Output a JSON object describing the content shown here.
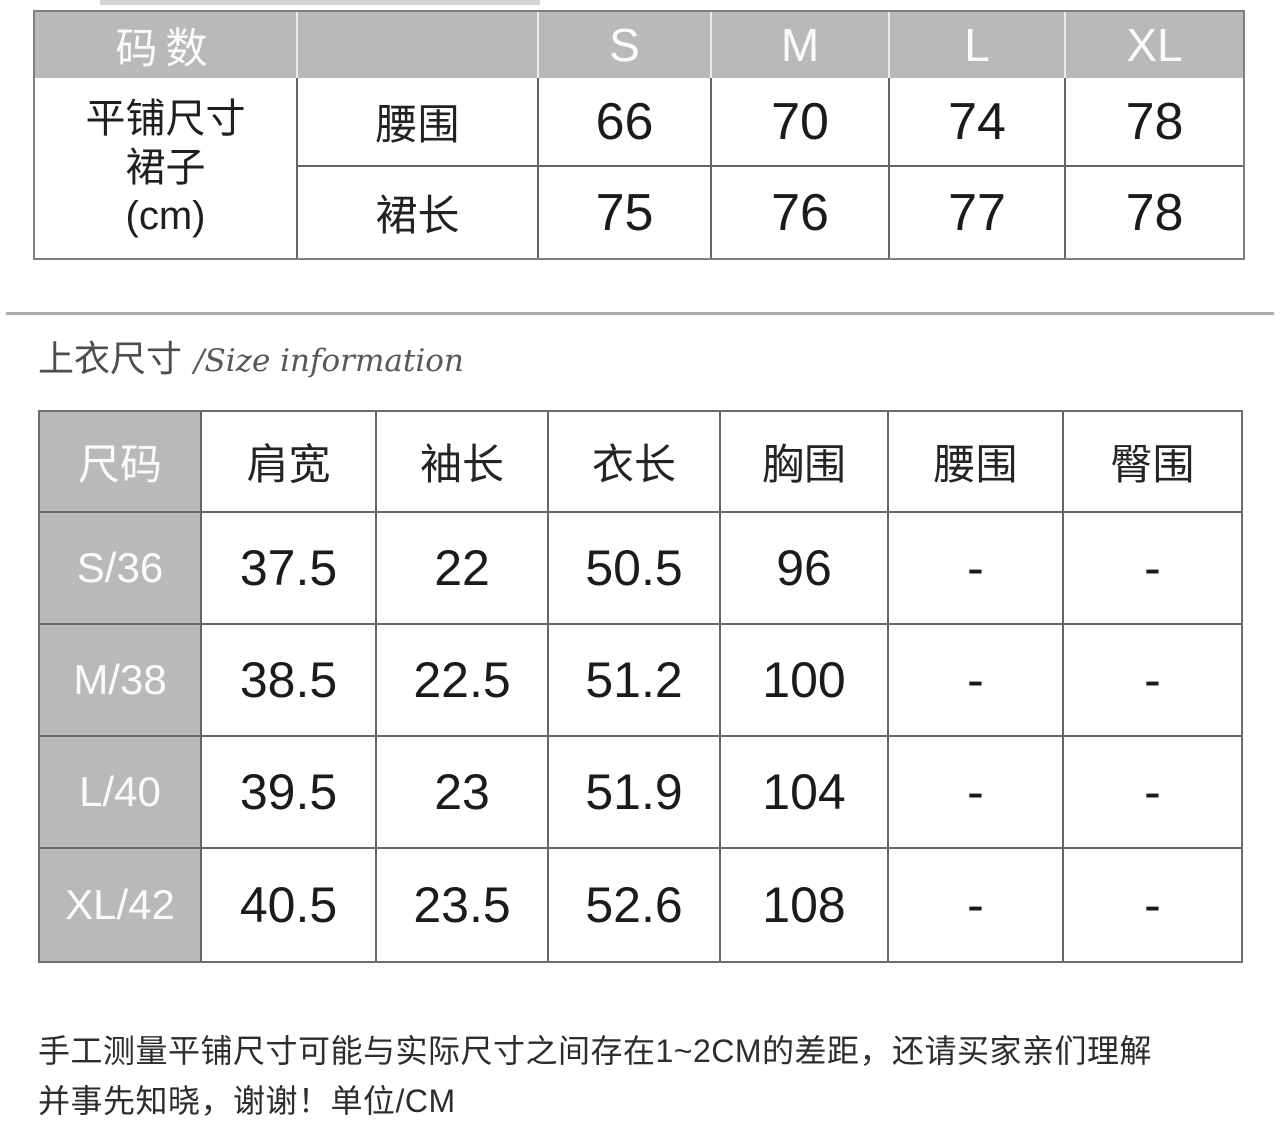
{
  "colors": {
    "header_gray": "#b9b9b9",
    "grid_border": "#666666",
    "separator_line": "#ababab",
    "heading_text": "#4d4d4d",
    "number_text": "#1b1b1b"
  },
  "skirt_table": {
    "corner_label": "码数",
    "size_headers": [
      "S",
      "M",
      "L",
      "XL"
    ],
    "group_label_lines": [
      "平铺尺寸",
      "裙子",
      "(cm)"
    ],
    "rows": [
      {
        "label": "腰围",
        "values": [
          "66",
          "70",
          "74",
          "78"
        ]
      },
      {
        "label": "裙长",
        "values": [
          "75",
          "76",
          "77",
          "78"
        ]
      }
    ]
  },
  "section_heading": {
    "title_cn": "上衣尺寸",
    "title_en": "/Size information"
  },
  "top_table": {
    "headers": [
      "尺码",
      "肩宽",
      "袖长",
      "衣长",
      "胸围",
      "腰围",
      "臀围"
    ],
    "rows": [
      {
        "label": "S/36",
        "values": [
          "37.5",
          "22",
          "50.5",
          "96",
          "-",
          "-"
        ]
      },
      {
        "label": "M/38",
        "values": [
          "38.5",
          "22.5",
          "51.2",
          "100",
          "-",
          "-"
        ]
      },
      {
        "label": "L/40",
        "values": [
          "39.5",
          "23",
          "51.9",
          "104",
          "-",
          "-"
        ]
      },
      {
        "label": "XL/42",
        "values": [
          "40.5",
          "23.5",
          "52.6",
          "108",
          "-",
          "-"
        ]
      }
    ]
  },
  "footnote": {
    "line1": "手工测量平铺尺寸可能与实际尺寸之间存在1~2CM的差距，还请买家亲们理解",
    "line2": "并事先知晓，谢谢！单位/CM"
  }
}
